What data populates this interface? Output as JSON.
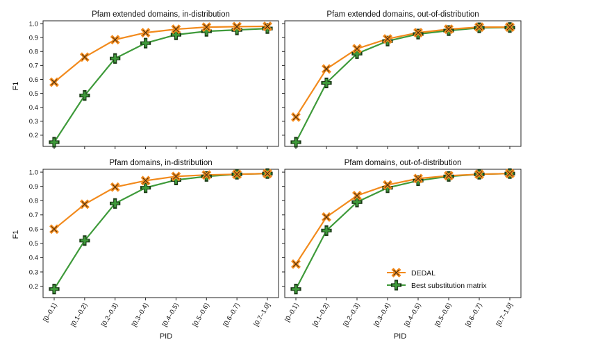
{
  "figure": {
    "xlabel": "PID",
    "ylabel": "F1"
  },
  "colors": {
    "dedal": "#f28a1c",
    "matrix": "#3e9a3a",
    "axis": "#222222"
  },
  "legend": {
    "position": "lower-right of bottom-right panel",
    "entries": [
      "DEDAL",
      "Best substitution matrix"
    ]
  },
  "chart_data": [
    {
      "type": "line",
      "title": "Pfam extended domains, in-distribution",
      "categories": [
        "[0–0.1)",
        "[0.1–0.2)",
        "[0.2–0.3)",
        "[0.3–0.4)",
        "[0.4–0.5)",
        "[0.5–0.6)",
        "[0.6–0.7)",
        "[0.7–1.0]"
      ],
      "xlabel": "PID",
      "ylabel": "F1",
      "ylim": [
        0.12,
        1.02
      ],
      "yticks": [
        "0.2",
        "0.3",
        "0.4",
        "0.5",
        "0.6",
        "0.7",
        "0.8",
        "0.9",
        "1.0"
      ],
      "series": [
        {
          "name": "DEDAL",
          "values": [
            0.58,
            0.76,
            0.885,
            0.935,
            0.96,
            0.975,
            0.978,
            0.98
          ]
        },
        {
          "name": "Best substitution matrix",
          "values": [
            0.15,
            0.485,
            0.75,
            0.86,
            0.92,
            0.945,
            0.955,
            0.965
          ]
        }
      ]
    },
    {
      "type": "line",
      "title": "Pfam extended domains, out-of-distribution",
      "categories": [
        "[0–0.1)",
        "[0.1–0.2)",
        "[0.2–0.3)",
        "[0.3–0.4)",
        "[0.4–0.5)",
        "[0.5–0.6)",
        "[0.6–0.7)",
        "[0.7–1.0]"
      ],
      "xlabel": "PID",
      "ylabel": "F1",
      "ylim": [
        0.12,
        1.02
      ],
      "yticks": [
        "0.2",
        "0.3",
        "0.4",
        "0.5",
        "0.6",
        "0.7",
        "0.8",
        "0.9",
        "1.0"
      ],
      "series": [
        {
          "name": "DEDAL",
          "values": [
            0.33,
            0.675,
            0.82,
            0.89,
            0.935,
            0.96,
            0.975,
            0.975
          ]
        },
        {
          "name": "Best substitution matrix",
          "values": [
            0.15,
            0.575,
            0.785,
            0.875,
            0.925,
            0.95,
            0.97,
            0.972
          ]
        }
      ]
    },
    {
      "type": "line",
      "title": "Pfam domains, in-distribution",
      "categories": [
        "[0–0.1)",
        "[0.1–0.2)",
        "[0.2–0.3)",
        "[0.3–0.4)",
        "[0.4–0.5)",
        "[0.5–0.6)",
        "[0.6–0.7)",
        "[0.7–1.0]"
      ],
      "xlabel": "PID",
      "ylabel": "F1",
      "ylim": [
        0.12,
        1.02
      ],
      "yticks": [
        "0.2",
        "0.3",
        "0.4",
        "0.5",
        "0.6",
        "0.7",
        "0.8",
        "0.9",
        "1.0"
      ],
      "series": [
        {
          "name": "DEDAL",
          "values": [
            0.6,
            0.775,
            0.895,
            0.94,
            0.97,
            0.98,
            0.985,
            0.99
          ]
        },
        {
          "name": "Best substitution matrix",
          "values": [
            0.18,
            0.52,
            0.78,
            0.89,
            0.945,
            0.97,
            0.985,
            0.99
          ]
        }
      ]
    },
    {
      "type": "line",
      "title": "Pfam domains, out-of-distribution",
      "categories": [
        "[0–0.1)",
        "[0.1–0.2)",
        "[0.2–0.3)",
        "[0.3–0.4)",
        "[0.4–0.5)",
        "[0.5–0.6)",
        "[0.6–0.7)",
        "[0.7–1.0]"
      ],
      "xlabel": "PID",
      "ylabel": "F1",
      "ylim": [
        0.12,
        1.02
      ],
      "yticks": [
        "0.2",
        "0.3",
        "0.4",
        "0.5",
        "0.6",
        "0.7",
        "0.8",
        "0.9",
        "1.0"
      ],
      "series": [
        {
          "name": "DEDAL",
          "values": [
            0.355,
            0.685,
            0.835,
            0.91,
            0.955,
            0.975,
            0.985,
            0.99
          ]
        },
        {
          "name": "Best substitution matrix",
          "values": [
            0.18,
            0.59,
            0.79,
            0.89,
            0.94,
            0.97,
            0.985,
            0.99
          ]
        }
      ]
    }
  ]
}
